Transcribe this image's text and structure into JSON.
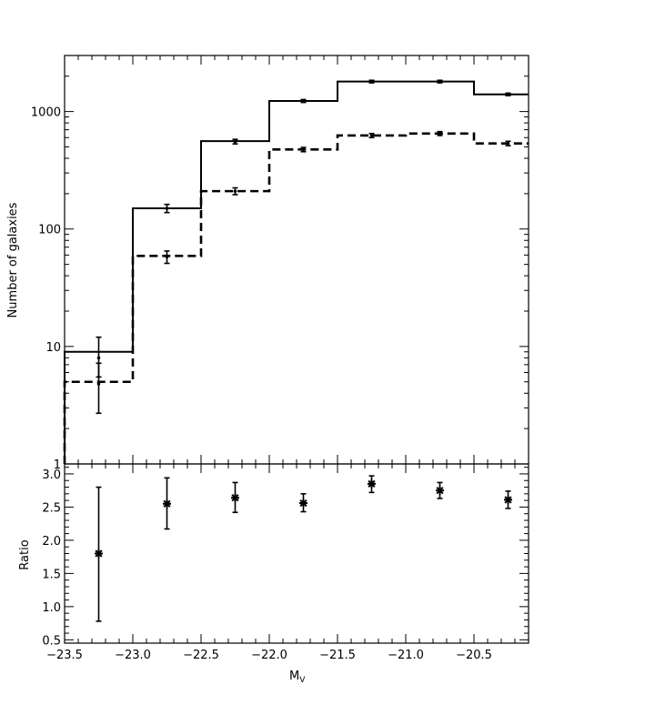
{
  "chart_data": [
    {
      "type": "histogram",
      "xlim": [
        -23.5,
        -20.1
      ],
      "ylim": [
        1,
        3000
      ],
      "yscale": "log",
      "ylabel": "Number of galaxies",
      "xlabel": "",
      "yticks": [
        {
          "v": 1,
          "label": "1"
        },
        {
          "v": 10,
          "label": "10"
        },
        {
          "v": 100,
          "label": "100"
        },
        {
          "v": 1000,
          "label": "1000"
        }
      ],
      "bin_edges": [
        -23.5,
        -23.0,
        -22.5,
        -22.0,
        -21.5,
        -21.0,
        -20.5,
        -20.1
      ],
      "series": [
        {
          "style": "solid",
          "values": [
            9,
            150,
            560,
            1230,
            1800,
            1800,
            1400
          ],
          "errors": [
            {
              "x": -23.25,
              "y": 8,
              "lo": 5.5,
              "hi": 12
            },
            {
              "x": -22.75,
              "y": 150,
              "lo": 138,
              "hi": 162
            },
            {
              "x": -22.25,
              "y": 555,
              "lo": 530,
              "hi": 580
            },
            {
              "x": -21.75,
              "y": 1230,
              "lo": 1195,
              "hi": 1265
            },
            {
              "x": -21.25,
              "y": 1800,
              "lo": 1755,
              "hi": 1845
            },
            {
              "x": -20.75,
              "y": 1800,
              "lo": 1755,
              "hi": 1845
            },
            {
              "x": -20.25,
              "y": 1400,
              "lo": 1365,
              "hi": 1435
            }
          ]
        },
        {
          "style": "dashed",
          "values": [
            5,
            59,
            210,
            475,
            625,
            650,
            535
          ],
          "errors": [
            {
              "x": -23.25,
              "y": 4.8,
              "lo": 2.7,
              "hi": 7.2
            },
            {
              "x": -22.75,
              "y": 58,
              "lo": 51,
              "hi": 65
            },
            {
              "x": -22.25,
              "y": 210,
              "lo": 196,
              "hi": 224
            },
            {
              "x": -21.75,
              "y": 475,
              "lo": 455,
              "hi": 495
            },
            {
              "x": -21.25,
              "y": 625,
              "lo": 600,
              "hi": 650
            },
            {
              "x": -20.75,
              "y": 650,
              "lo": 625,
              "hi": 675
            },
            {
              "x": -20.25,
              "y": 535,
              "lo": 512,
              "hi": 558
            }
          ]
        }
      ]
    },
    {
      "type": "scatter",
      "xlim": [
        -23.5,
        -20.1
      ],
      "ylim": [
        0.45,
        3.15
      ],
      "ylabel": "Ratio",
      "xlabel_main": "M",
      "xlabel_sub": "V",
      "xticks": [
        {
          "v": -23.5,
          "label": "−23.5"
        },
        {
          "v": -23.0,
          "label": "−23.0"
        },
        {
          "v": -22.5,
          "label": "−22.5"
        },
        {
          "v": -22.0,
          "label": "−22.0"
        },
        {
          "v": -21.5,
          "label": "−21.5"
        },
        {
          "v": -21.0,
          "label": "−21.0"
        },
        {
          "v": -20.5,
          "label": "−20.5"
        }
      ],
      "yticks": [
        {
          "v": 0.5,
          "label": "0.5"
        },
        {
          "v": 1.0,
          "label": "1.0"
        },
        {
          "v": 1.5,
          "label": "1.5"
        },
        {
          "v": 2.0,
          "label": "2.0"
        },
        {
          "v": 2.5,
          "label": "2.5"
        },
        {
          "v": 3.0,
          "label": "3.0"
        }
      ],
      "points": [
        {
          "x": -23.25,
          "y": 1.8,
          "lo": 0.78,
          "hi": 2.8
        },
        {
          "x": -22.75,
          "y": 2.55,
          "lo": 2.17,
          "hi": 2.94
        },
        {
          "x": -22.25,
          "y": 2.64,
          "lo": 2.42,
          "hi": 2.87
        },
        {
          "x": -21.75,
          "y": 2.56,
          "lo": 2.43,
          "hi": 2.7
        },
        {
          "x": -21.25,
          "y": 2.85,
          "lo": 2.72,
          "hi": 2.97
        },
        {
          "x": -20.75,
          "y": 2.75,
          "lo": 2.63,
          "hi": 2.87
        },
        {
          "x": -20.25,
          "y": 2.61,
          "lo": 2.48,
          "hi": 2.74
        }
      ]
    }
  ]
}
